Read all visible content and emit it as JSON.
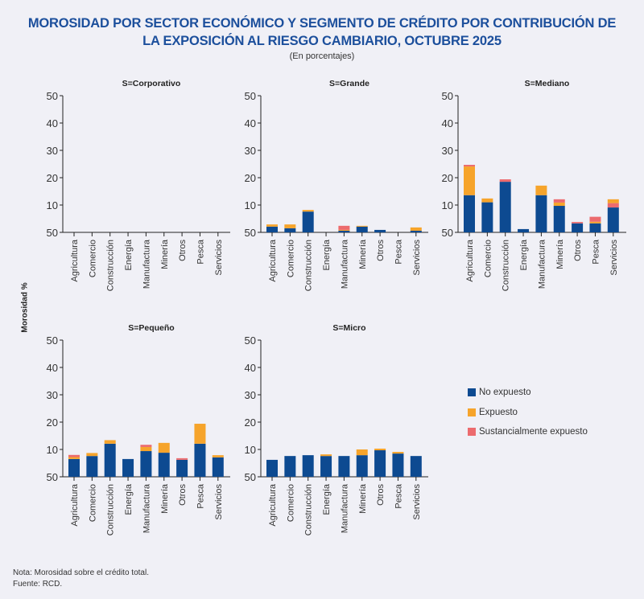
{
  "header": {
    "title_line1": "MOROSIDAD POR SECTOR ECONÓMICO Y SEGMENTO DE CRÉDITO POR CONTRIBUCIÓN DE",
    "title_line2": "LA EXPOSICIÓN AL RIESGO CAMBIARIO, OCTUBRE 2025",
    "subtitle": "(En porcentajes)"
  },
  "footer": {
    "note": "Nota: Morosidad sobre el crédito total.",
    "source": "Fuente: RCD."
  },
  "colors": {
    "no_expuesto": "#0d4a91",
    "expuesto": "#f6a42b",
    "sustancialmente_expuesto": "#ec6b6e",
    "title": "#1c4f9c"
  },
  "chart_data": {
    "type": "bar",
    "stacked": true,
    "title": "MOROSIDAD POR SECTOR ECONÓMICO Y SEGMENTO DE CRÉDITO POR CONTRIBUCIÓN DE LA EXPOSICIÓN AL RIESGO CAMBIARIO, OCTUBRE 2025",
    "subtitle": "(En porcentajes)",
    "ylabel": "Morosidad %",
    "ylim": [
      0,
      50
    ],
    "yticks": [
      50,
      10,
      20,
      30,
      40,
      50
    ],
    "ytick_labels": [
      "50",
      "10",
      "20",
      "30",
      "40",
      "50"
    ],
    "grid": false,
    "legend_position": "right",
    "legend": [
      "No expuesto",
      "Expuesto",
      "Sustancialmente expuesto"
    ],
    "categories": [
      "Agricultura",
      "Comercio",
      "Construcción",
      "Energía",
      "Manufactura",
      "Minería",
      "Otros",
      "Pesca",
      "Servicios"
    ],
    "panels": [
      {
        "title": "S=Corporativo",
        "series": [
          {
            "name": "No expuesto",
            "values": [
              0,
              0,
              0,
              0,
              0,
              0,
              0,
              0,
              0
            ]
          },
          {
            "name": "Expuesto",
            "values": [
              0,
              0,
              0,
              0,
              0,
              0,
              0,
              0,
              0
            ]
          },
          {
            "name": "Sustancialmente expuesto",
            "values": [
              0,
              0,
              0,
              0,
              0,
              0,
              0,
              0,
              0
            ]
          }
        ],
        "stack_order": [
          [
            "no",
            "exp",
            "sus"
          ],
          [
            "no",
            "exp",
            "sus"
          ],
          [
            "no",
            "exp",
            "sus"
          ],
          [
            "no",
            "exp",
            "sus"
          ],
          [
            "no",
            "exp",
            "sus"
          ],
          [
            "no",
            "exp",
            "sus"
          ],
          [
            "no",
            "exp",
            "sus"
          ],
          [
            "no",
            "exp",
            "sus"
          ],
          [
            "no",
            "exp",
            "sus"
          ]
        ]
      },
      {
        "title": "S=Grande",
        "series": [
          {
            "name": "No expuesto",
            "values": [
              2.1,
              1.5,
              7.6,
              0,
              0.6,
              2.1,
              0.9,
              0,
              0.6
            ]
          },
          {
            "name": "Expuesto",
            "values": [
              0.8,
              1.4,
              0.6,
              0,
              0.3,
              0.3,
              0,
              0,
              1.2
            ]
          },
          {
            "name": "Sustancialmente expuesto",
            "values": [
              0,
              0,
              0,
              0,
              1.5,
              0,
              0,
              0,
              0
            ]
          }
        ],
        "stack_order": [
          [
            "no",
            "exp",
            "sus"
          ],
          [
            "no",
            "exp",
            "sus"
          ],
          [
            "no",
            "exp",
            "sus"
          ],
          [
            "no",
            "exp",
            "sus"
          ],
          [
            "no",
            "exp",
            "sus"
          ],
          [
            "no",
            "exp",
            "sus"
          ],
          [
            "no",
            "exp",
            "sus"
          ],
          [
            "no",
            "exp",
            "sus"
          ],
          [
            "no",
            "exp",
            "sus"
          ]
        ]
      },
      {
        "title": "S=Mediano",
        "series": [
          {
            "name": "No expuesto",
            "values": [
              13.6,
              11.0,
              18.5,
              1.2,
              13.6,
              9.7,
              3.3,
              3.3,
              9.1
            ]
          },
          {
            "name": "Expuesto",
            "values": [
              10.5,
              1.4,
              0,
              0,
              3.5,
              1.2,
              0,
              0.6,
              1.4
            ]
          },
          {
            "name": "Sustancialmente expuesto",
            "values": [
              0.6,
              0,
              0.9,
              0,
              0,
              1.2,
              0.5,
              1.8,
              1.6
            ]
          }
        ],
        "stack_order": [
          [
            "no",
            "exp",
            "sus"
          ],
          [
            "no",
            "exp",
            "sus"
          ],
          [
            "no",
            "exp",
            "sus"
          ],
          [
            "no",
            "exp",
            "sus"
          ],
          [
            "no",
            "exp",
            "sus"
          ],
          [
            "no",
            "exp",
            "sus"
          ],
          [
            "no",
            "exp",
            "sus"
          ],
          [
            "no",
            "exp",
            "sus"
          ],
          [
            "no",
            "sus",
            "exp"
          ]
        ]
      },
      {
        "title": "S=Pequeño",
        "series": [
          {
            "name": "No expuesto",
            "values": [
              6.5,
              7.6,
              12.1,
              6.5,
              9.4,
              8.8,
              6.2,
              12.1,
              7.1
            ]
          },
          {
            "name": "Expuesto",
            "values": [
              0.7,
              1.1,
              1.3,
              0,
              1.5,
              3.6,
              0,
              7.3,
              0.8
            ]
          },
          {
            "name": "Sustancialmente expuesto",
            "values": [
              0.8,
              0,
              0,
              0,
              0.8,
              0,
              0.6,
              0,
              0
            ]
          }
        ],
        "stack_order": [
          [
            "no",
            "exp",
            "sus"
          ],
          [
            "no",
            "exp",
            "sus"
          ],
          [
            "no",
            "exp",
            "sus"
          ],
          [
            "no",
            "exp",
            "sus"
          ],
          [
            "no",
            "exp",
            "sus"
          ],
          [
            "no",
            "exp",
            "sus"
          ],
          [
            "no",
            "exp",
            "sus"
          ],
          [
            "no",
            "exp",
            "sus"
          ],
          [
            "no",
            "exp",
            "sus"
          ]
        ]
      },
      {
        "title": "S=Micro",
        "series": [
          {
            "name": "No expuesto",
            "values": [
              6.2,
              7.6,
              7.9,
              7.6,
              7.6,
              7.9,
              9.7,
              8.5,
              7.6
            ]
          },
          {
            "name": "Expuesto",
            "values": [
              0,
              0,
              0,
              0.6,
              0,
              2.1,
              0.6,
              0.6,
              0
            ]
          },
          {
            "name": "Sustancialmente expuesto",
            "values": [
              0,
              0,
              0,
              0,
              0,
              0,
              0,
              0,
              0
            ]
          }
        ],
        "stack_order": [
          [
            "no",
            "exp",
            "sus"
          ],
          [
            "no",
            "exp",
            "sus"
          ],
          [
            "no",
            "exp",
            "sus"
          ],
          [
            "no",
            "exp",
            "sus"
          ],
          [
            "no",
            "exp",
            "sus"
          ],
          [
            "no",
            "exp",
            "sus"
          ],
          [
            "no",
            "exp",
            "sus"
          ],
          [
            "no",
            "exp",
            "sus"
          ],
          [
            "no",
            "exp",
            "sus"
          ]
        ]
      }
    ]
  }
}
